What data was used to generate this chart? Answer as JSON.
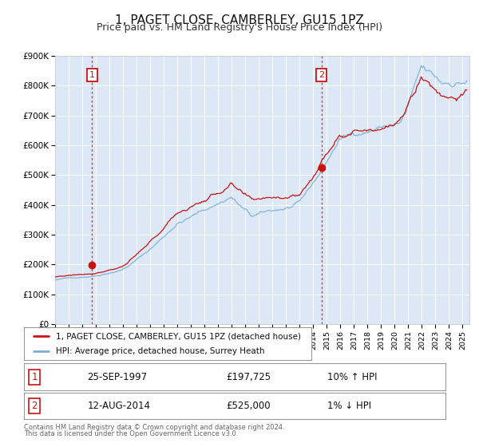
{
  "title": "1, PAGET CLOSE, CAMBERLEY, GU15 1PZ",
  "subtitle": "Price paid vs. HM Land Registry's House Price Index (HPI)",
  "background_color": "#ffffff",
  "plot_bg_color": "#dce8f5",
  "grid_color": "#ffffff",
  "hpi_color": "#7aafd4",
  "price_color": "#cc1111",
  "marker1_date": 1997.73,
  "marker1_value": 197725,
  "marker2_date": 2014.61,
  "marker2_value": 525000,
  "vline1_date": 1997.73,
  "vline2_date": 2014.61,
  "ylim": [
    0,
    900000
  ],
  "xlim": [
    1995.0,
    2025.5
  ],
  "yticks": [
    0,
    100000,
    200000,
    300000,
    400000,
    500000,
    600000,
    700000,
    800000,
    900000
  ],
  "ytick_labels": [
    "£0",
    "£100K",
    "£200K",
    "£300K",
    "£400K",
    "£500K",
    "£600K",
    "£700K",
    "£800K",
    "£900K"
  ],
  "legend_label1": "1, PAGET CLOSE, CAMBERLEY, GU15 1PZ (detached house)",
  "legend_label2": "HPI: Average price, detached house, Surrey Heath",
  "table_row1_num": "1",
  "table_row1_date": "25-SEP-1997",
  "table_row1_price": "£197,725",
  "table_row1_hpi": "10% ↑ HPI",
  "table_row2_num": "2",
  "table_row2_date": "12-AUG-2014",
  "table_row2_price": "£525,000",
  "table_row2_hpi": "1% ↓ HPI",
  "footnote1": "Contains HM Land Registry data © Crown copyright and database right 2024.",
  "footnote2": "This data is licensed under the Open Government Licence v3.0.",
  "title_fontsize": 11,
  "subtitle_fontsize": 9
}
